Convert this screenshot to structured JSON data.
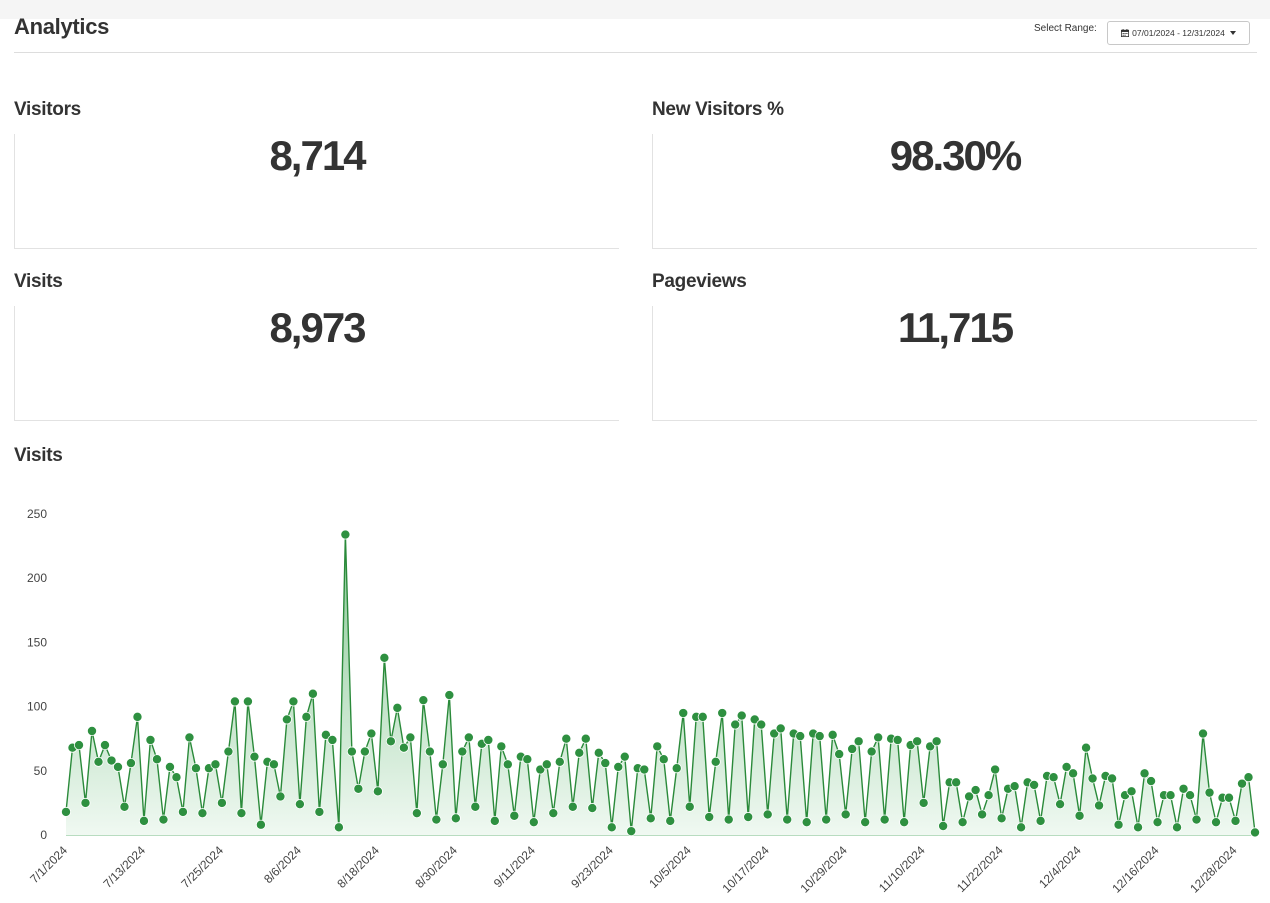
{
  "header": {
    "title": "Analytics",
    "range_label": "Select Range:",
    "range_value": "07/01/2024 - 12/31/2024",
    "range_icon": "calendar-icon",
    "range_caret_icon": "caret-down-icon"
  },
  "stats": [
    {
      "title": "Visitors",
      "value": "8,714"
    },
    {
      "title": "New Visitors %",
      "value": "98.30%"
    },
    {
      "title": "Visits",
      "value": "8,973"
    },
    {
      "title": "Pageviews",
      "value": "11,715"
    }
  ],
  "chart_section": {
    "title": "Visits"
  },
  "colors": {
    "line": "#2a8a3a",
    "marker": "#2e9040",
    "fill_top": "#7cc28a",
    "fill_bottom": "#eef8f0",
    "axis": "#b8dcc0"
  },
  "chart_data": {
    "type": "area",
    "title": "Visits",
    "xlabel": "",
    "ylabel": "",
    "ylim": [
      0,
      250
    ],
    "y_ticks": [
      0,
      50,
      100,
      150,
      200,
      250
    ],
    "x_start": "2024-07-01",
    "x_end": "2024-12-31",
    "x_tick_labels": [
      "7/1/2024",
      "7/13/2024",
      "7/25/2024",
      "8/6/2024",
      "8/18/2024",
      "8/30/2024",
      "9/11/2024",
      "9/23/2024",
      "10/5/2024",
      "10/17/2024",
      "10/29/2024",
      "11/10/2024",
      "11/22/2024",
      "12/4/2024",
      "12/16/2024",
      "12/28/2024"
    ],
    "grid": false,
    "legend": "none",
    "series": [
      {
        "values": [
          18,
          68,
          70,
          25,
          81,
          57,
          70,
          58,
          53,
          22,
          56,
          92,
          11,
          74,
          59,
          12,
          53,
          45,
          18,
          76,
          52,
          17,
          52,
          55,
          25,
          65,
          104,
          17,
          104,
          61,
          8,
          57,
          55,
          30,
          90,
          104,
          24,
          92,
          110,
          18,
          78,
          74,
          6,
          234,
          65,
          36,
          65,
          79,
          34,
          138,
          73,
          99,
          68,
          76,
          17,
          105,
          65,
          12,
          55,
          109,
          13,
          65,
          76,
          22,
          71,
          74,
          11,
          69,
          55,
          15,
          61,
          59,
          10,
          51,
          55,
          17,
          57,
          75,
          22,
          64,
          75,
          21,
          64,
          56,
          6,
          53,
          61,
          3,
          52,
          51,
          13,
          69,
          59,
          11,
          52,
          95,
          22,
          92,
          92,
          14,
          57,
          95,
          12,
          86,
          93,
          14,
          90,
          86,
          16,
          79,
          83,
          12,
          79,
          77,
          10,
          79,
          77,
          12,
          78,
          63,
          16,
          67,
          73,
          10,
          65,
          76,
          12,
          75,
          74,
          10,
          70,
          73,
          25,
          69,
          73,
          7,
          41,
          41,
          10,
          30,
          35,
          16,
          31,
          51,
          13,
          36,
          38,
          6,
          41,
          39,
          11,
          46,
          45,
          24,
          53,
          48,
          15,
          68,
          44,
          23,
          46,
          44,
          8,
          31,
          34,
          6,
          48,
          42,
          10,
          31,
          31,
          6,
          36,
          31,
          12,
          79,
          33,
          10,
          29,
          29,
          11,
          40,
          45,
          2
        ]
      }
    ]
  }
}
